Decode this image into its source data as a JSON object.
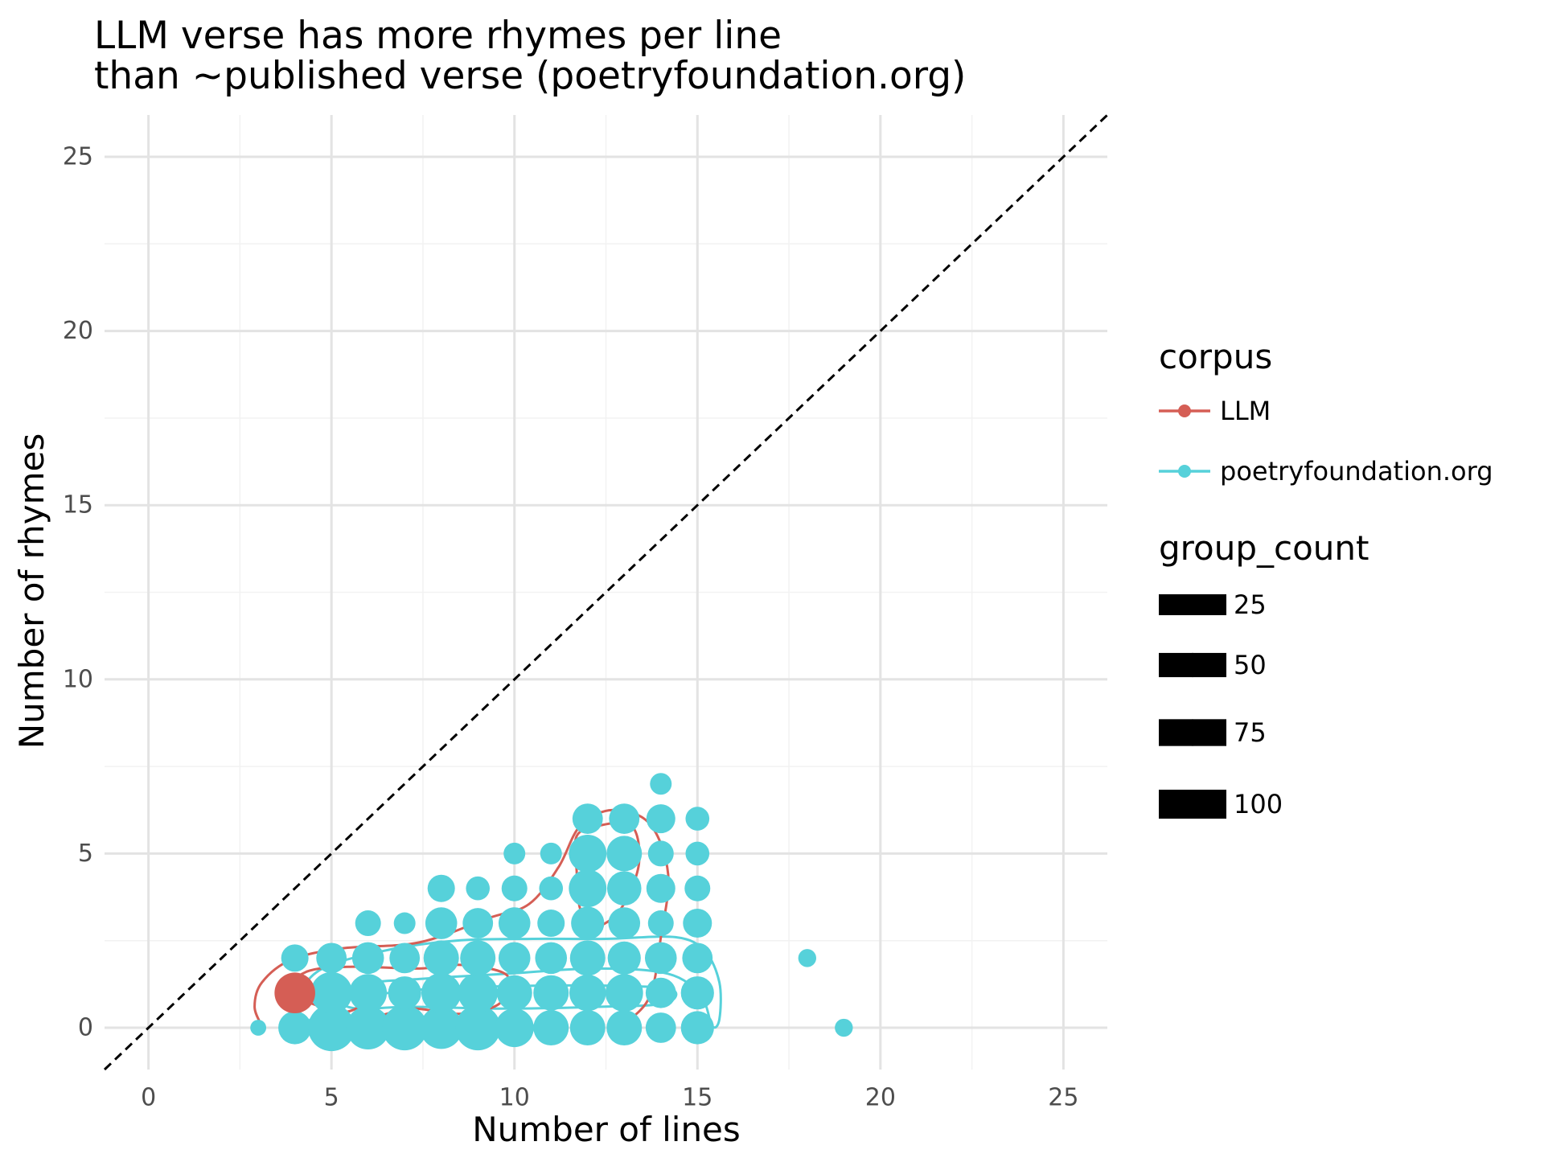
{
  "chart_data": {
    "type": "scatter",
    "title": [
      "LLM verse has more rhymes per line",
      "than ~published verse (poetryfoundation.org)"
    ],
    "xlabel": "Number of lines",
    "ylabel": "Number of rhymes",
    "xlim": [
      -1.2,
      26.2
    ],
    "ylim": [
      -1.2,
      26.2
    ],
    "xticks": [
      0,
      5,
      10,
      15,
      20,
      25
    ],
    "yticks": [
      0,
      5,
      10,
      15,
      20,
      25
    ],
    "grid": true,
    "reference_line": {
      "type": "y=x",
      "style": "dashed",
      "color": "#000000"
    },
    "legend": {
      "placement": "right",
      "color_title": "corpus",
      "size_title": "group_count",
      "size_breaks": [
        25,
        50,
        75,
        100
      ]
    },
    "colors": {
      "LLM": "#d55e55",
      "poetryfoundation.org": "#56d1da"
    },
    "series": [
      {
        "name": "poetryfoundation.org",
        "points": [
          [
            3,
            0,
            5
          ],
          [
            4,
            0,
            50
          ],
          [
            4,
            1,
            70
          ],
          [
            4,
            2,
            30
          ],
          [
            5,
            0,
            120
          ],
          [
            5,
            1,
            90
          ],
          [
            5,
            2,
            40
          ],
          [
            6,
            0,
            100
          ],
          [
            6,
            1,
            70
          ],
          [
            6,
            2,
            45
          ],
          [
            6,
            3,
            25
          ],
          [
            7,
            0,
            110
          ],
          [
            7,
            1,
            50
          ],
          [
            7,
            2,
            40
          ],
          [
            7,
            3,
            15
          ],
          [
            8,
            0,
            95
          ],
          [
            8,
            1,
            80
          ],
          [
            8,
            2,
            60
          ],
          [
            8,
            3,
            45
          ],
          [
            8,
            4,
            30
          ],
          [
            9,
            0,
            110
          ],
          [
            9,
            1,
            80
          ],
          [
            9,
            2,
            60
          ],
          [
            9,
            3,
            40
          ],
          [
            9,
            4,
            20
          ],
          [
            10,
            0,
            75
          ],
          [
            10,
            1,
            60
          ],
          [
            10,
            2,
            45
          ],
          [
            10,
            3,
            45
          ],
          [
            10,
            4,
            25
          ],
          [
            10,
            5,
            15
          ],
          [
            11,
            0,
            60
          ],
          [
            11,
            1,
            60
          ],
          [
            11,
            2,
            45
          ],
          [
            11,
            3,
            30
          ],
          [
            11,
            4,
            20
          ],
          [
            11,
            5,
            15
          ],
          [
            12,
            0,
            60
          ],
          [
            12,
            1,
            65
          ],
          [
            12,
            2,
            60
          ],
          [
            12,
            3,
            50
          ],
          [
            12,
            4,
            70
          ],
          [
            12,
            5,
            70
          ],
          [
            12,
            6,
            40
          ],
          [
            13,
            0,
            60
          ],
          [
            13,
            1,
            70
          ],
          [
            13,
            2,
            50
          ],
          [
            13,
            3,
            45
          ],
          [
            13,
            4,
            55
          ],
          [
            13,
            5,
            60
          ],
          [
            13,
            6,
            40
          ],
          [
            14,
            0,
            40
          ],
          [
            14,
            1,
            40
          ],
          [
            14,
            2,
            45
          ],
          [
            14,
            3,
            25
          ],
          [
            14,
            4,
            35
          ],
          [
            14,
            5,
            25
          ],
          [
            14,
            6,
            35
          ],
          [
            14,
            7,
            15
          ],
          [
            15,
            0,
            50
          ],
          [
            15,
            1,
            50
          ],
          [
            15,
            2,
            40
          ],
          [
            15,
            3,
            35
          ],
          [
            15,
            4,
            25
          ],
          [
            15,
            5,
            20
          ],
          [
            15,
            6,
            20
          ],
          [
            18,
            2,
            8
          ],
          [
            19,
            0,
            8
          ]
        ]
      },
      {
        "name": "LLM",
        "points": [
          [
            4,
            1,
            85
          ]
        ]
      }
    ]
  }
}
